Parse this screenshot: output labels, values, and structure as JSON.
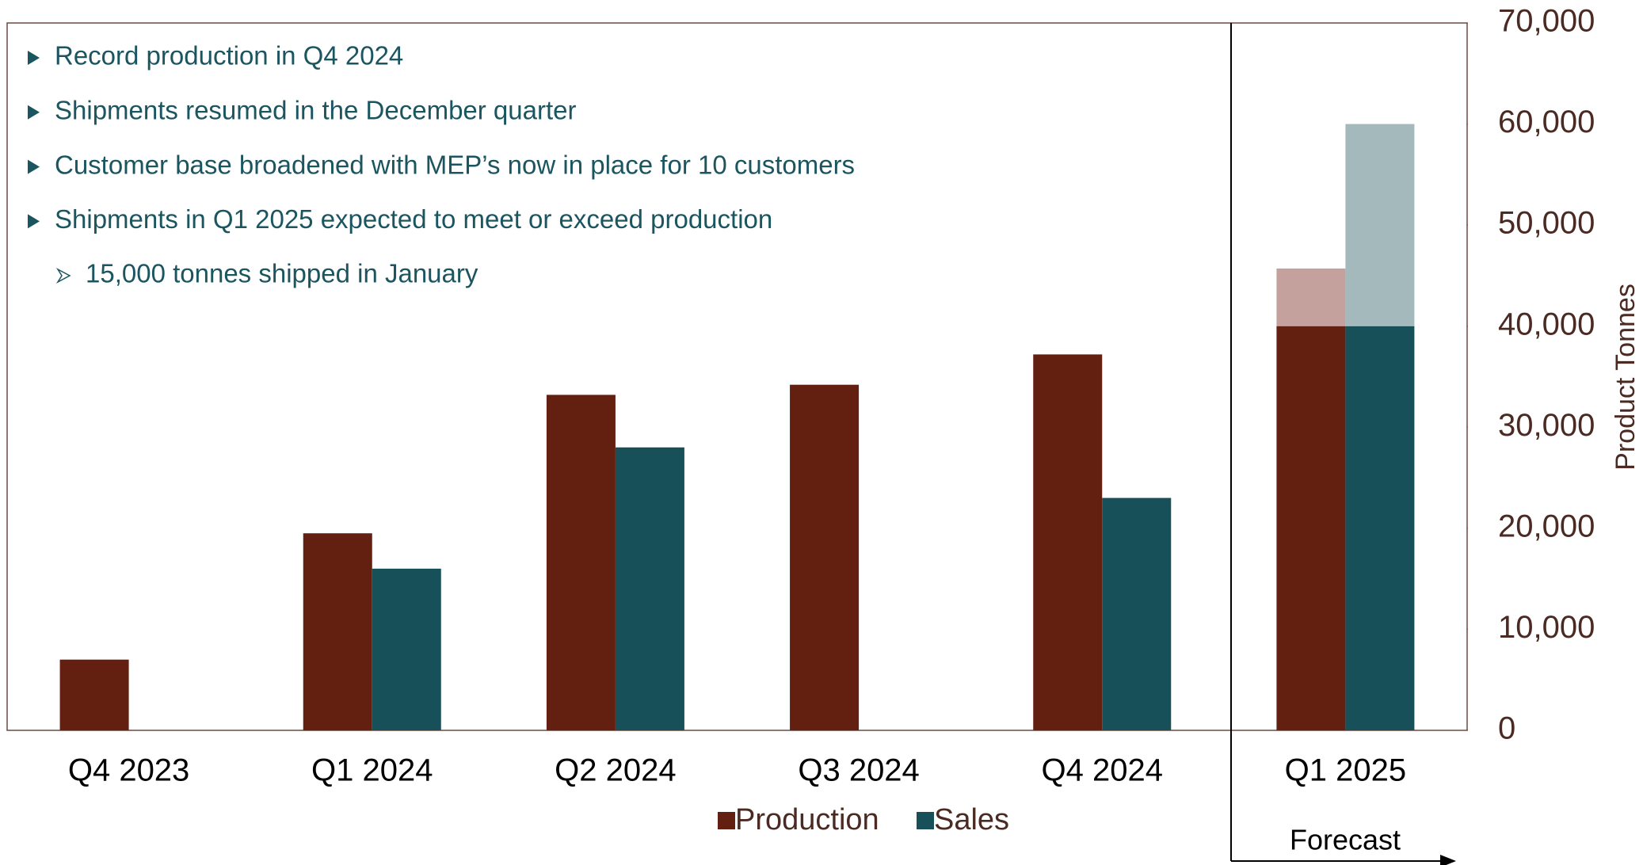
{
  "chart_data": {
    "type": "bar",
    "notes": [
      "Record production in Q4 2024",
      "Shipments resumed in the December quarter",
      "Customer base broadened with MEP’s now in place for 10 customers",
      "Shipments in Q1 2025 expected to meet or exceed production"
    ],
    "sub_notes": [
      "15,000 tonnes shipped in January"
    ],
    "categories": [
      "Q4 2023",
      "Q1 2024",
      "Q2 2024",
      "Q3 2024",
      "Q4 2024",
      "Q1 2025"
    ],
    "series": [
      {
        "name": "Production",
        "color": "#631f10",
        "forecast_color": "#c4a19c",
        "values": [
          7000,
          19500,
          33200,
          34200,
          37200,
          40000
        ],
        "forecast_extra": [
          null,
          null,
          null,
          null,
          null,
          5700
        ]
      },
      {
        "name": "Sales",
        "color": "#18505a",
        "forecast_color": "#a3b9bc",
        "values": [
          null,
          16000,
          28000,
          null,
          23000,
          40000
        ],
        "forecast_extra": [
          null,
          null,
          null,
          null,
          null,
          20000
        ]
      }
    ],
    "forecast_label": "Forecast",
    "y_label": "Product Tonnes",
    "ylim": [
      0,
      70000
    ],
    "yticks": [
      0,
      {
        "value": 10000,
        "label": "10,000"
      },
      {
        "value": 20000,
        "label": "20,000"
      },
      {
        "value": 30000,
        "label": "30,000"
      },
      {
        "value": 40000,
        "label": "40,000"
      },
      {
        "value": 50000,
        "label": "50,000"
      },
      {
        "value": 60000,
        "label": "60,000"
      },
      {
        "value": 70000,
        "label": "70,000"
      }
    ],
    "y_axis_side": "right",
    "grid": false
  }
}
